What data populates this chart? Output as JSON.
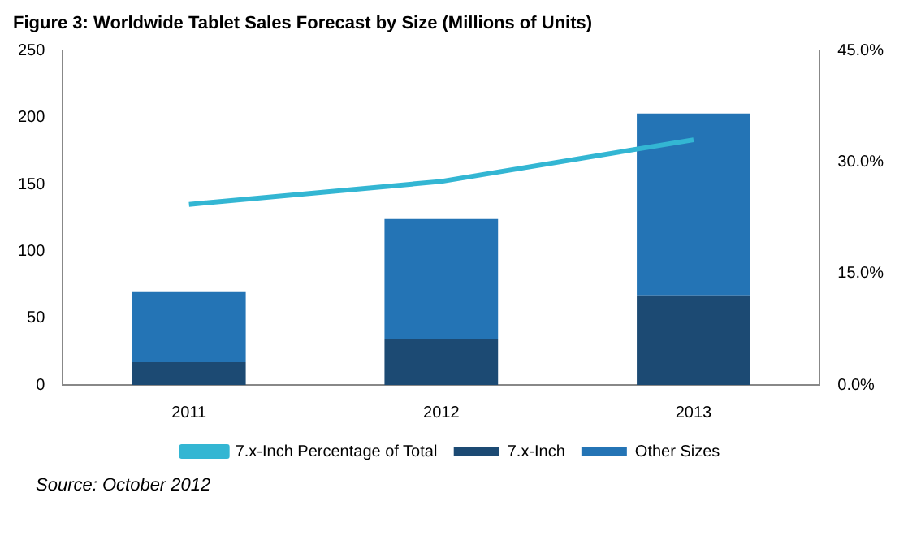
{
  "chart_data": {
    "type": "bar",
    "stacked": true,
    "title": "Figure 3: Worldwide Tablet Sales Forecast by Size (Millions of Units)",
    "categories": [
      "2011",
      "2012",
      "2013"
    ],
    "series": [
      {
        "name": "7.x-Inch",
        "color": "#1c4a73",
        "values": [
          17,
          34,
          67
        ]
      },
      {
        "name": "Other Sizes",
        "color": "#2474b5",
        "values": [
          53,
          90,
          136
        ]
      },
      {
        "name": "7.x-Inch Percentage of Total",
        "type": "line",
        "axis": "y2",
        "color": "#33b6d3",
        "values": [
          24.3,
          27.4,
          33.0
        ],
        "marker": "none"
      }
    ],
    "ylim": [
      0,
      250
    ],
    "yticks": [
      0,
      50,
      100,
      150,
      200,
      250
    ],
    "y2lim": [
      0,
      45
    ],
    "y2ticks": [
      {
        "value": 0,
        "label": "0.0%"
      },
      {
        "value": 15,
        "label": "15.0%"
      },
      {
        "value": 30,
        "label": "30.0%"
      },
      {
        "value": 45,
        "label": "45.0%"
      }
    ],
    "grid": false,
    "legend": "bottom",
    "annotations": [
      "Source: October 2012"
    ]
  }
}
